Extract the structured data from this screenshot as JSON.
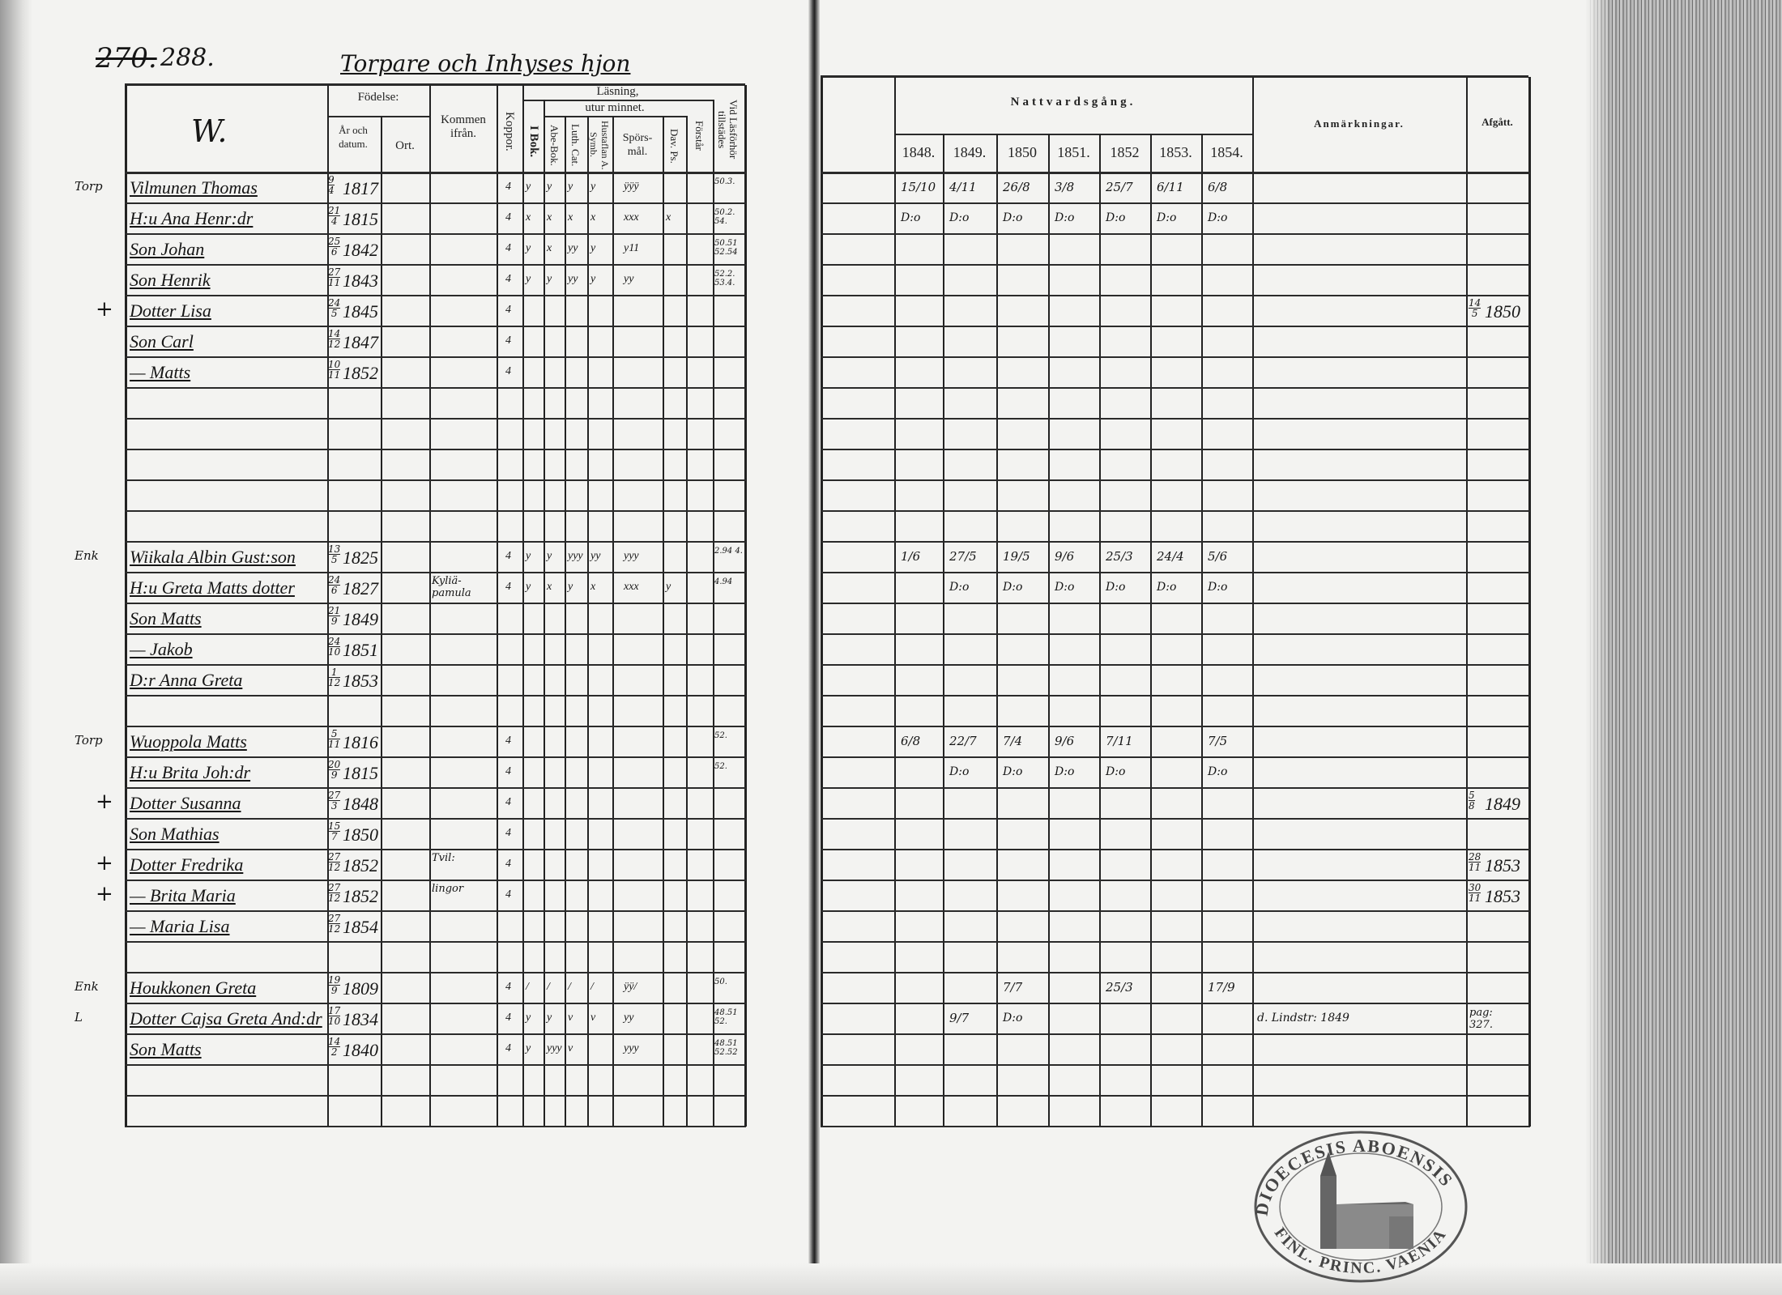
{
  "left_page": {
    "page_number_struck": "270.",
    "page_number": "288.",
    "section_title": "Torpare och Inhyses hjon",
    "letter_heading": "W.",
    "headers": {
      "fodelse": "Födelse:",
      "ar_och_datum": "År och datum.",
      "ort": "Ort.",
      "kommen_ifran": "Kommen ifrån.",
      "koppor": "Koppor.",
      "lasning": "Läsning,",
      "i_bok": "I Bok.",
      "utur_minnet": "utur minnet.",
      "abe_bok": "Abe-Bok.",
      "luth_cat": "Luth. Cat.",
      "hustaflan_a_symb": "Hustaflan A. Symb.",
      "sporsmal": "Spörs-mål.",
      "dav_ps": "Dav. Ps.",
      "forstar": "Förstår",
      "vid_lasforhor": "Vid Läsförhör tillstädes"
    }
  },
  "right_page": {
    "headers": {
      "nattvardsgang": "Nattvardsgång.",
      "years": [
        "1848.",
        "1849.",
        "1850",
        "1851.",
        "1852",
        "1853.",
        "1854."
      ],
      "anmarkningar": "Anmärkningar.",
      "afgatt": "Afgått."
    },
    "stamp_text_top": "DIOECESIS ABOENSIS",
    "stamp_text_bottom": "FINL. PRINC. VAENIA"
  },
  "rows": [
    {
      "margin": "Torp",
      "name": "Vilmunen Thomas",
      "day": "9",
      "month": "4",
      "year": "1817",
      "koppor": "4",
      "reading": [
        "y",
        "y",
        "y",
        "y",
        "",
        "ÿÿÿ",
        "",
        ""
      ],
      "forhor": "50.3.",
      "communion": [
        "15/10",
        "4/11",
        "26/8",
        "3/8",
        "25/7",
        "6/11",
        "6/8"
      ]
    },
    {
      "name": "H:u Ana Henr:dr",
      "day": "21",
      "month": "4",
      "year": "1815",
      "koppor": "4",
      "reading": [
        "x",
        "x",
        "x",
        "x",
        "",
        "xxx",
        "x",
        ""
      ],
      "forhor": "50.2. 54.",
      "communion": [
        "D:o",
        "D:o",
        "D:o",
        "D:o",
        "D:o",
        "D:o",
        "D:o"
      ]
    },
    {
      "name": "Son Johan",
      "day": "25",
      "month": "6",
      "year": "1842",
      "koppor": "4",
      "reading": [
        "y",
        "x",
        "yy",
        "y",
        "",
        "y11",
        "",
        ""
      ],
      "forhor": "50.51 52.54"
    },
    {
      "name": "Son Henrik",
      "day": "27",
      "month": "11",
      "year": "1843",
      "koppor": "4",
      "reading": [
        "y",
        "y",
        "yy",
        "y",
        "",
        "yy",
        "",
        ""
      ],
      "forhor": "52.2. 53.4."
    },
    {
      "margin": "+",
      "name": "Dotter Lisa",
      "day": "24",
      "month": "5",
      "year": "1845",
      "koppor": "4",
      "afgatt_day": "14",
      "afgatt_month": "5",
      "afgatt_year": "1850"
    },
    {
      "name": "Son Carl",
      "day": "14",
      "month": "12",
      "year": "1847",
      "koppor": "4"
    },
    {
      "name": "— Matts",
      "day": "10",
      "month": "11",
      "year": "1852",
      "koppor": "4"
    },
    {},
    {},
    {},
    {},
    {},
    {
      "margin": "Enk",
      "name": "Wiikala Albin Gust:son",
      "day": "13",
      "month": "5",
      "year": "1825",
      "koppor": "4",
      "reading": [
        "y",
        "y",
        "yyy",
        "yy",
        "",
        "yyy",
        "",
        ""
      ],
      "forhor": "2.94 4.",
      "communion": [
        "1/6",
        "27/5",
        "19/5",
        "9/6",
        "25/3",
        "24/4",
        "5/6"
      ]
    },
    {
      "name": "H:u Greta Matts dotter",
      "day": "24",
      "month": "6",
      "year": "1827",
      "kommen": "Kyliä- pamula",
      "koppor": "4",
      "reading": [
        "y",
        "x",
        "y",
        "x",
        "",
        "xxx",
        "y",
        ""
      ],
      "forhor": "4.94",
      "communion": [
        "",
        "D:o",
        "D:o",
        "D:o",
        "D:o",
        "D:o",
        "D:o"
      ]
    },
    {
      "name": "Son Matts",
      "day": "21",
      "month": "9",
      "year": "1849"
    },
    {
      "name": "— Jakob",
      "day": "24",
      "month": "10",
      "year": "1851"
    },
    {
      "name": "D:r Anna Greta",
      "day": "1",
      "month": "12",
      "year": "1853"
    },
    {},
    {
      "margin": "Torp",
      "name": "Wuoppola Matts",
      "day": "5",
      "month": "11",
      "year": "1816",
      "koppor": "4",
      "forhor": "52.",
      "communion": [
        "6/8",
        "22/7",
        "7/4",
        "9/6",
        "7/11",
        "",
        "7/5"
      ]
    },
    {
      "name": "H:u Brita Joh:dr",
      "day": "20",
      "month": "9",
      "year": "1815",
      "koppor": "4",
      "forhor": "52.",
      "communion": [
        "",
        "D:o",
        "D:o",
        "D:o",
        "D:o",
        "",
        "D:o"
      ]
    },
    {
      "margin": "+",
      "name": "Dotter Susanna",
      "day": "27",
      "month": "3",
      "year": "1848",
      "koppor": "4",
      "afgatt_day": "5",
      "afgatt_month": "8",
      "afgatt_year": "1849"
    },
    {
      "name": "Son Mathias",
      "day": "15",
      "month": "7",
      "year": "1850",
      "koppor": "4"
    },
    {
      "margin": "+",
      "name": "Dotter Fredrika",
      "day": "27",
      "month": "12",
      "year": "1852",
      "kommen": "Tvil:",
      "koppor": "4",
      "afgatt_day": "28",
      "afgatt_month": "11",
      "afgatt_year": "1853"
    },
    {
      "margin": "+",
      "name": "— Brita Maria",
      "day": "27",
      "month": "12",
      "year": "1852",
      "kommen": "lingor",
      "koppor": "4",
      "afgatt_day": "30",
      "afgatt_month": "11",
      "afgatt_year": "1853"
    },
    {
      "name": "— Maria Lisa",
      "day": "27",
      "month": "12",
      "year": "1854"
    },
    {},
    {
      "margin": "Enk",
      "name": "Houkkonen Greta",
      "day": "19",
      "month": "9",
      "year": "1809",
      "koppor": "4",
      "reading": [
        "/",
        "/",
        "/",
        "/",
        "",
        "ÿÿ/",
        "",
        ""
      ],
      "forhor": "50.",
      "communion": [
        "",
        "",
        "7/7",
        "",
        "25/3",
        "",
        "17/9"
      ]
    },
    {
      "margin": "L",
      "name": "Dotter Cajsa Greta And:dr",
      "day": "17",
      "month": "10",
      "year": "1834",
      "koppor": "4",
      "reading": [
        "y",
        "y",
        "v",
        "v",
        "",
        "yy",
        "",
        ""
      ],
      "forhor": "48.51 52.",
      "communion": [
        "",
        "9/7",
        "D:o",
        "",
        "",
        "",
        ""
      ],
      "anmarkning": "d. Lindstr: 1849",
      "afgatt_note": "pag: 327."
    },
    {
      "name": "Son Matts",
      "day": "14",
      "month": "2",
      "year": "1840",
      "koppor": "4",
      "reading": [
        "y",
        "yyy",
        "v",
        "",
        "",
        "yyy",
        "",
        ""
      ],
      "forhor": "48.51 52.52"
    },
    {},
    {}
  ]
}
